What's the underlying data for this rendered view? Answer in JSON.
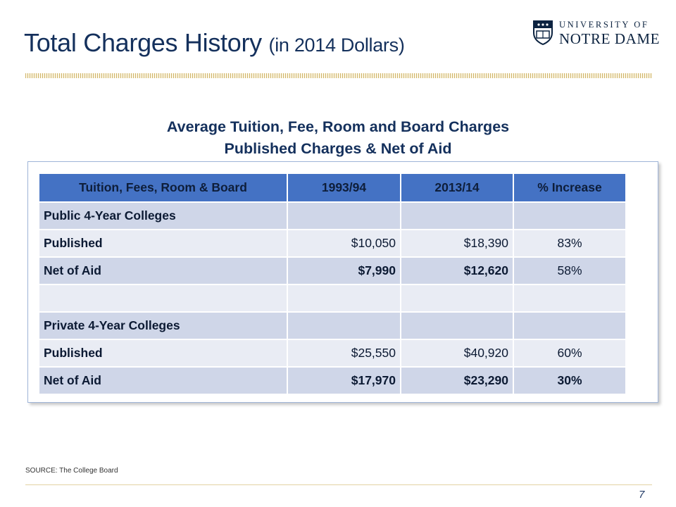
{
  "slide": {
    "title": "Total Charges History",
    "title_suffix": "(in 2014 Dollars)",
    "heading_line1": "Average Tuition, Fee, Room and Board Charges",
    "heading_line2": "Published Charges & Net of Aid",
    "source": "SOURCE: The College Board",
    "page_number": "7"
  },
  "logo": {
    "line1": "UNIVERSITY OF",
    "line2": "NOTRE DAME"
  },
  "colors": {
    "title": "#14305c",
    "header_fill": "#4472c4",
    "row_dark": "#cfd6e8",
    "row_light": "#e9ecf4",
    "accent_gold": "#cfb46a"
  },
  "table": {
    "columns": [
      "Tuition, Fees, Room & Board",
      "1993/94",
      "2013/14",
      "% Increase"
    ],
    "rows": [
      {
        "label": "Public 4-Year Colleges",
        "v1": "",
        "v2": "",
        "pct": ""
      },
      {
        "label": "Published",
        "v1": "$10,050",
        "v2": "$18,390",
        "pct": "83%"
      },
      {
        "label": "Net of Aid",
        "v1": "$7,990",
        "v2": "$12,620",
        "pct": "58%"
      },
      {
        "label": "",
        "v1": "",
        "v2": "",
        "pct": ""
      },
      {
        "label": "Private 4-Year Colleges",
        "v1": "",
        "v2": "",
        "pct": ""
      },
      {
        "label": "Published",
        "v1": "$25,550",
        "v2": "$40,920",
        "pct": "60%"
      },
      {
        "label": "Net of Aid",
        "v1": "$17,970",
        "v2": "$23,290",
        "pct": "30%"
      }
    ]
  }
}
